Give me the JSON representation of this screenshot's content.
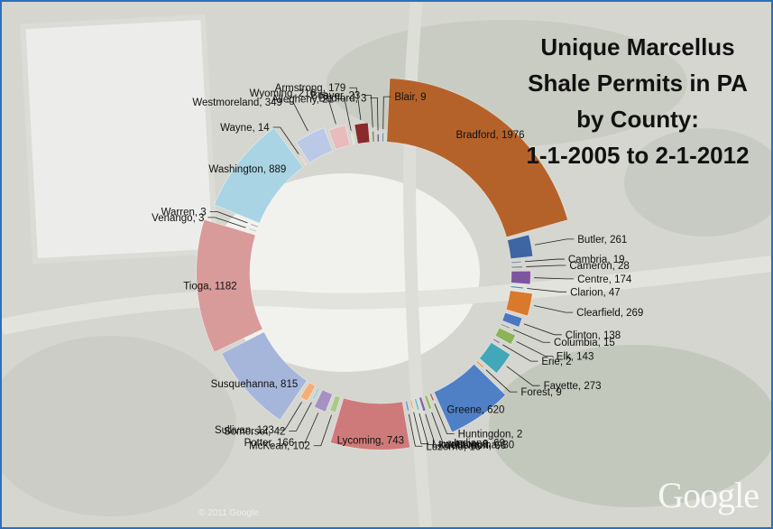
{
  "title_lines": [
    "Unique Marcellus",
    "Shale Permits in PA",
    "by County:",
    "1-1-2005 to 2-1-2012"
  ],
  "watermark": "Google",
  "copyright": "© 2011 Google",
  "chart_data": {
    "type": "pie",
    "title": "Unique Marcellus Shale Permits in PA by County: 1-1-2005 to 2-1-2012",
    "label_format": "{name}, {value}",
    "slices": [
      {
        "name": "Bradford",
        "value": 1976,
        "color": "#b5622a"
      },
      {
        "name": "Butler",
        "value": 261,
        "color": "#3d66a3"
      },
      {
        "name": "Cambria",
        "value": 19,
        "color": "#7f8f9a"
      },
      {
        "name": "Cameron",
        "value": 28,
        "color": "#6f7f8a"
      },
      {
        "name": "Centre",
        "value": 174,
        "color": "#7d55a0"
      },
      {
        "name": "Clarion",
        "value": 47,
        "color": "#3b9bb0"
      },
      {
        "name": "Clearfield",
        "value": 269,
        "color": "#d9792c"
      },
      {
        "name": "Clinton",
        "value": 138,
        "color": "#4a77bf"
      },
      {
        "name": "Columbia",
        "value": 15,
        "color": "#8a97a5"
      },
      {
        "name": "Elk",
        "value": 143,
        "color": "#8db35a"
      },
      {
        "name": "Erie",
        "value": 2,
        "color": "#9e5aa0"
      },
      {
        "name": "Fayette",
        "value": 273,
        "color": "#42a7b8"
      },
      {
        "name": "Forest",
        "value": 9,
        "color": "#e48b3a"
      },
      {
        "name": "Greene",
        "value": 620,
        "color": "#4f7fc4"
      },
      {
        "name": "Huntingdon",
        "value": 2,
        "color": "#b24545"
      },
      {
        "name": "Indiana",
        "value": 69,
        "color": "#9ab96a"
      },
      {
        "name": "Jefferson",
        "value": 66,
        "color": "#8560a8"
      },
      {
        "name": "Lackawanna",
        "value": 30,
        "color": "#48b0c4"
      },
      {
        "name": "Lawrence",
        "value": 9,
        "color": "#f0a060"
      },
      {
        "name": "Luzerne",
        "value": 16,
        "color": "#5a86c8"
      },
      {
        "name": "Lycoming",
        "value": 743,
        "color": "#cf7a7a"
      },
      {
        "name": "McKean",
        "value": 102,
        "color": "#a9c98a"
      },
      {
        "name": "Potter",
        "value": 166,
        "color": "#a591c4"
      },
      {
        "name": "Somerset",
        "value": 42,
        "color": "#7cc6d6"
      },
      {
        "name": "Sullivan",
        "value": 123,
        "color": "#f6ae78"
      },
      {
        "name": "Susquehanna",
        "value": 815,
        "color": "#a6b6db"
      },
      {
        "name": "Tioga",
        "value": 1182,
        "color": "#d99a9a"
      },
      {
        "name": "Venango",
        "value": 3,
        "color": "#c4d1a4"
      },
      {
        "name": "Warren",
        "value": 3,
        "color": "#bba9d1"
      },
      {
        "name": "Washington",
        "value": 889,
        "color": "#a8d4e4"
      },
      {
        "name": "Wayne",
        "value": 14,
        "color": "#f7c9a6"
      },
      {
        "name": "Westmoreland",
        "value": 349,
        "color": "#b9c9e6"
      },
      {
        "name": "Wyoming",
        "value": 216,
        "color": "#e8bcbc"
      },
      {
        "name": "Allegheny",
        "value": 21,
        "color": "#d5e3b8"
      },
      {
        "name": "Armstrong",
        "value": 179,
        "color": "#8a2b2b"
      },
      {
        "name": "Beaver",
        "value": 23,
        "color": "#5d7a2e"
      },
      {
        "name": "Bedford",
        "value": 3,
        "color": "#5a3f7a"
      },
      {
        "name": "Blair",
        "value": 9,
        "color": "#6e8c94"
      }
    ]
  }
}
